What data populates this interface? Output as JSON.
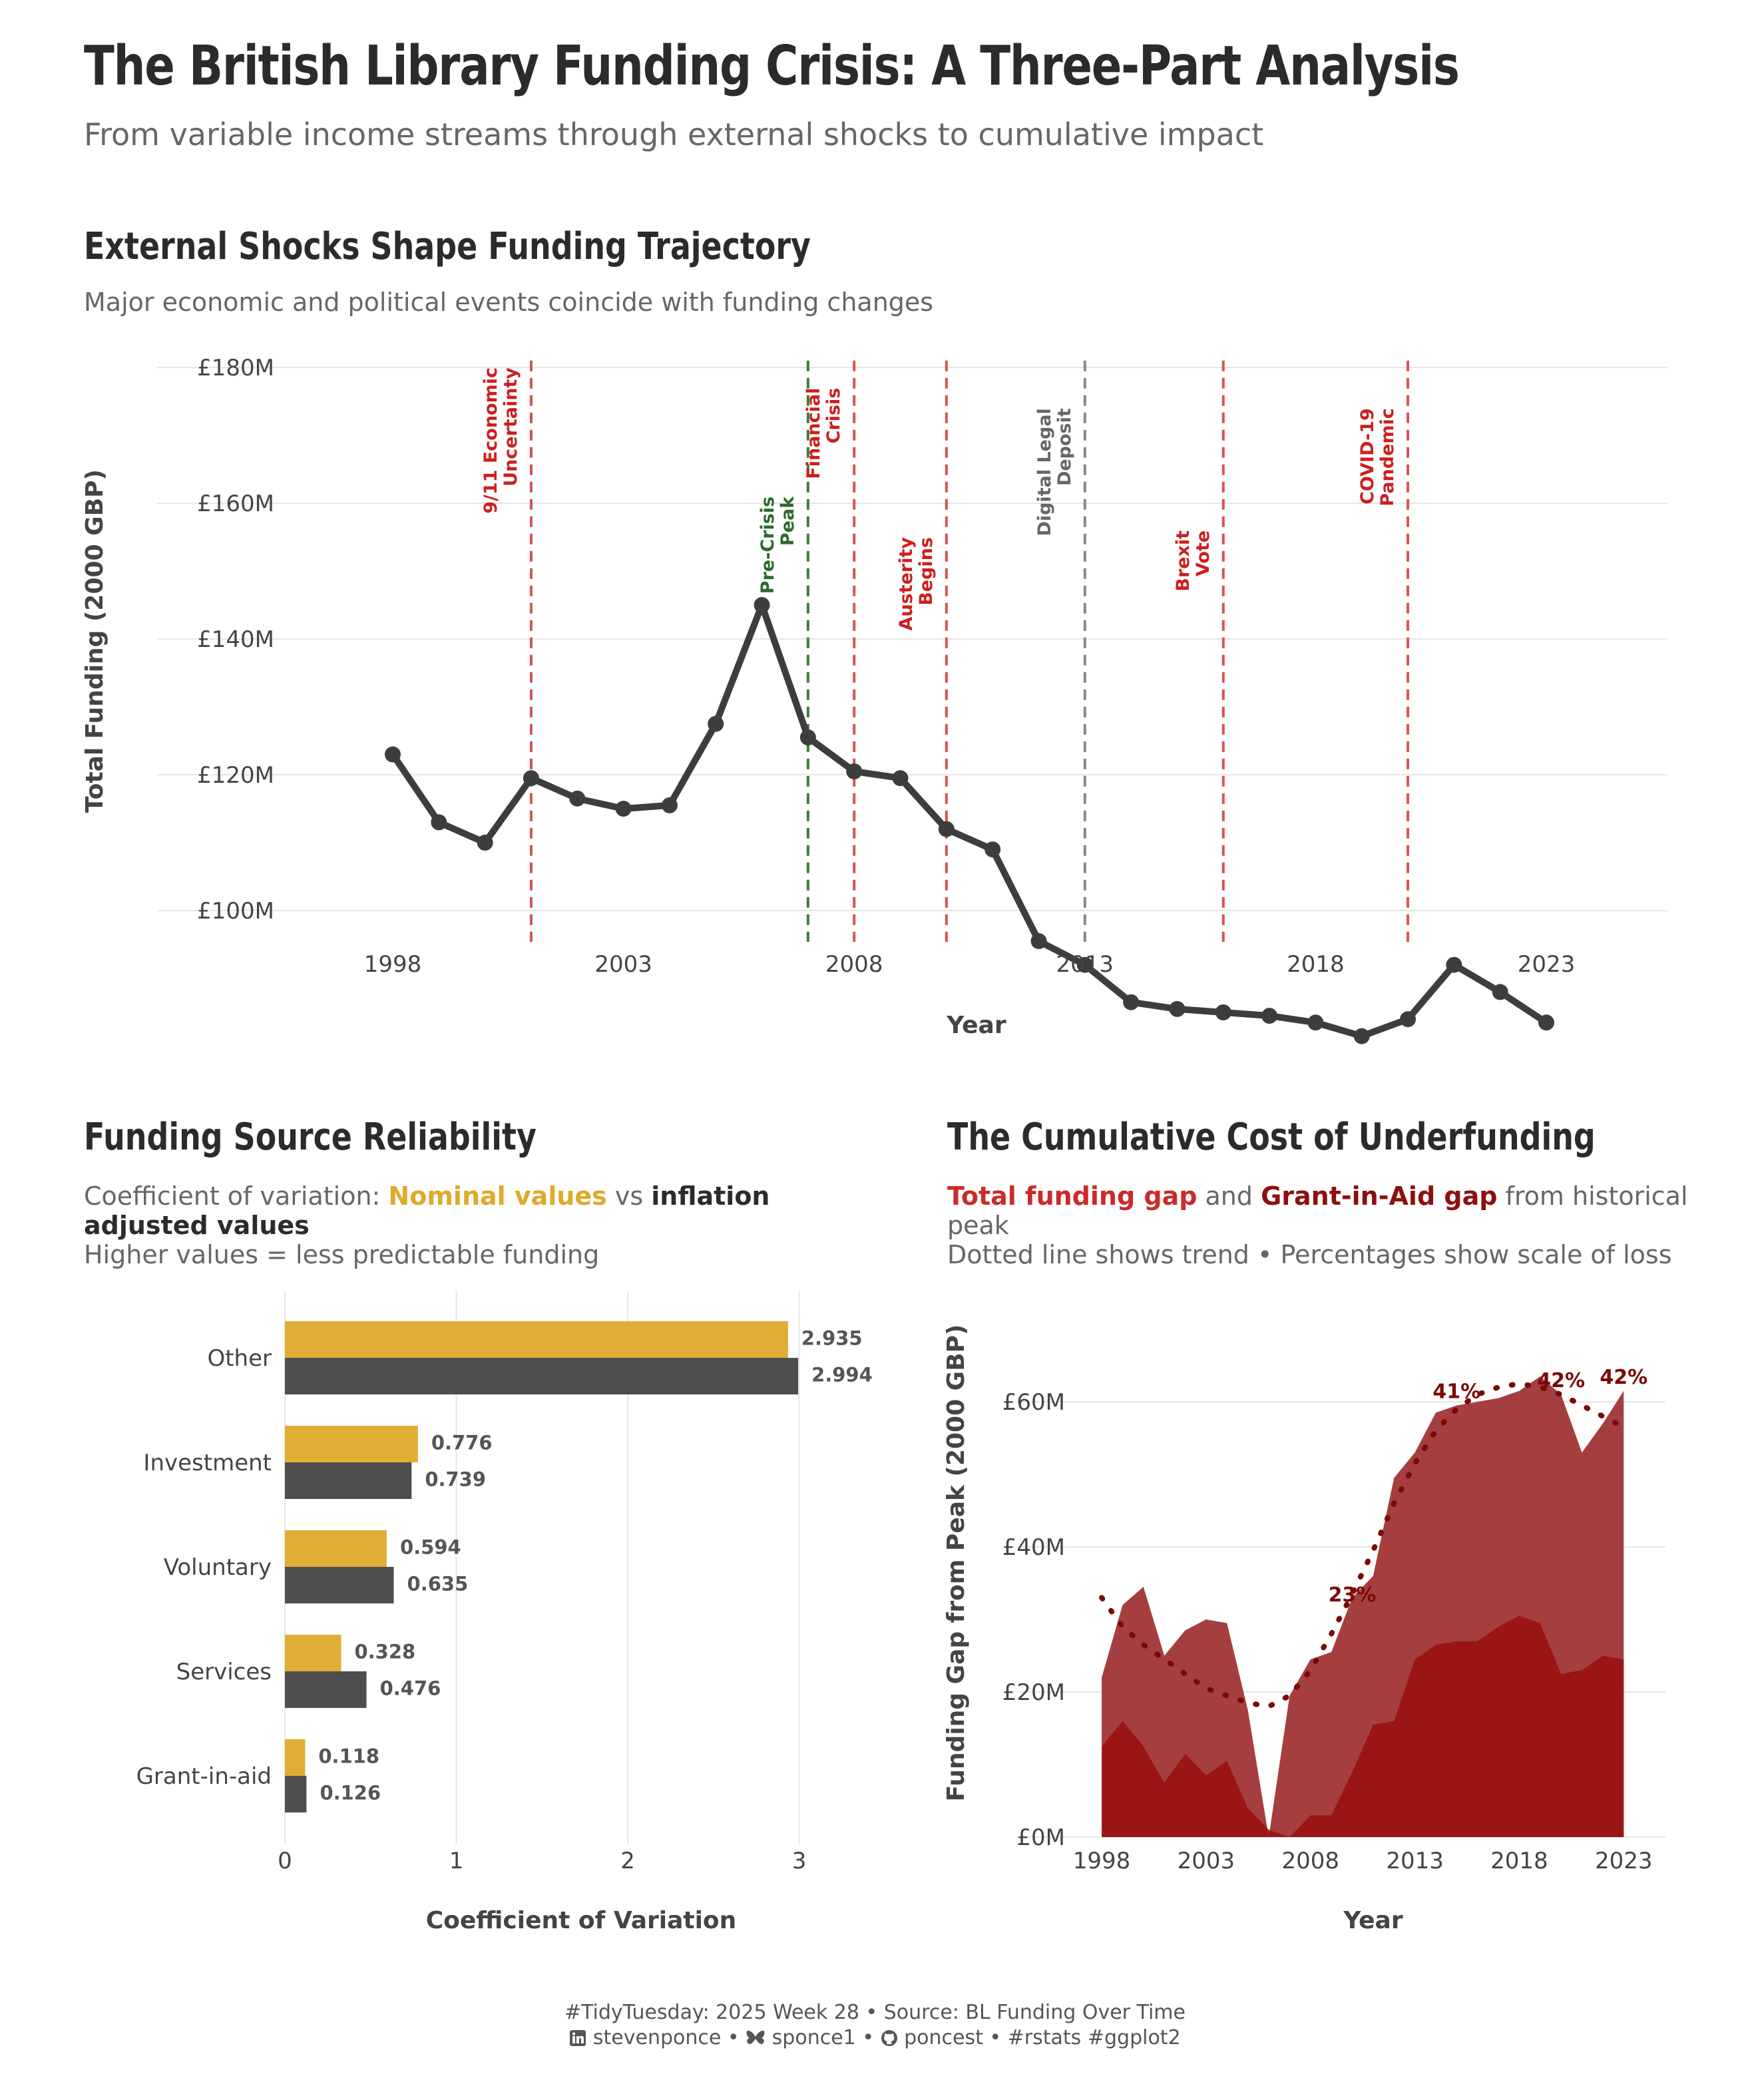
{
  "title": "The British Library Funding Crisis: A Three-Part Analysis",
  "subtitle": "From variable income streams through external shocks to cumulative impact",
  "footer": {
    "line1": "#TidyTuesday: 2025 Week 28 • Source: BL Funding Over Time",
    "linkedin_icon": "linkedin-icon",
    "linkedin": "stevenponce",
    "bluesky_icon": "butterfly-icon",
    "bluesky": "sponce1",
    "github_icon": "github-icon",
    "github": "poncest",
    "tags": "#rstats #ggplot2",
    "sep": "•"
  },
  "colors": {
    "line": "#3d3d3d",
    "event_red": "#d9534f",
    "event_red_text": "#cc1f1f",
    "event_green": "#3a7d3a",
    "event_green_text": "#2d6a2d",
    "event_gray": "#888888",
    "nominal": "#dfaa2a",
    "adjusted": "#454545",
    "total_gap": "#a33b3b",
    "gia_gap": "#9b1111",
    "trend": "#7a0a0a"
  },
  "panels": {
    "shocks": {
      "title": "External Shocks Shape Funding Trajectory",
      "subtitle": "Major economic and political events coincide with funding changes"
    },
    "reliability": {
      "title": "Funding Source Reliability",
      "subtitle_prefix": "Coefficient of variation: ",
      "subtitle_nominal": "Nominal values",
      "subtitle_vs": " vs ",
      "subtitle_adjusted": "inflation adjusted values",
      "subtitle_line2": "Higher values = less predictable funding"
    },
    "cumulative": {
      "title": "The Cumulative Cost of Underfunding",
      "subtitle_total": "Total funding gap",
      "subtitle_and": " and ",
      "subtitle_gia": "Grant-in-Aid gap",
      "subtitle_rest": " from historical peak",
      "subtitle_line2": "Dotted line shows trend • Percentages show scale of loss"
    }
  },
  "chart_data": [
    {
      "type": "line",
      "title": "External Shocks Shape Funding Trajectory",
      "xlabel": "Year",
      "ylabel": "Total Funding (2000 GBP)",
      "xlim": [
        1998,
        2023
      ],
      "ylim": [
        80,
        180
      ],
      "x_ticks": [
        1998,
        2003,
        2008,
        2013,
        2018,
        2023
      ],
      "y_ticks": [
        100,
        120,
        140,
        160,
        180
      ],
      "y_tick_labels": [
        "£100M",
        "£120M",
        "£140M",
        "£160M",
        "£180M"
      ],
      "grid": "horizontal",
      "x": [
        1998,
        1999,
        2000,
        2001,
        2002,
        2003,
        2004,
        2005,
        2006,
        2007,
        2008,
        2009,
        2010,
        2011,
        2012,
        2013,
        2014,
        2015,
        2016,
        2017,
        2018,
        2019,
        2020,
        2021,
        2022,
        2023
      ],
      "y": [
        123,
        113,
        110,
        119.5,
        116.5,
        115,
        115.5,
        127.5,
        145,
        125.5,
        120.5,
        119.5,
        112,
        109,
        95.5,
        92,
        86.5,
        85.5,
        85,
        84.5,
        83.5,
        81.5,
        84,
        92,
        88,
        83.5
      ],
      "events": [
        {
          "year": 2001,
          "label": "9/11 Economic\nUncertainty",
          "kind": "negative",
          "text_top": 180
        },
        {
          "year": 2007,
          "label": "Pre-Crisis\nPeak",
          "kind": "positive",
          "text_top": 161
        },
        {
          "year": 2008,
          "label": "Financial\nCrisis",
          "kind": "negative",
          "text_top": 177
        },
        {
          "year": 2010,
          "label": "Austerity\nBegins",
          "kind": "negative",
          "text_top": 155
        },
        {
          "year": 2013,
          "label": "Digital Legal\nDeposit",
          "kind": "neutral",
          "text_top": 174
        },
        {
          "year": 2016,
          "label": "Brexit\nVote",
          "kind": "negative",
          "text_top": 156
        },
        {
          "year": 2020,
          "label": "COVID-19\nPandemic",
          "kind": "negative",
          "text_top": 174
        }
      ]
    },
    {
      "type": "bar",
      "orientation": "horizontal",
      "xlabel": "Coefficient of Variation",
      "xlim": [
        0,
        3.25
      ],
      "x_ticks": [
        0,
        1,
        2,
        3
      ],
      "grid": "vertical",
      "categories": [
        "Other",
        "Investment",
        "Voluntary",
        "Services",
        "Grant-in-aid"
      ],
      "series": [
        {
          "name": "Nominal values",
          "values": [
            2.935,
            0.776,
            0.594,
            0.328,
            0.118
          ],
          "labels": [
            "2.935",
            "0.776",
            "0.594",
            "0.328",
            "0.118"
          ]
        },
        {
          "name": "inflation adjusted values",
          "values": [
            2.994,
            0.739,
            0.635,
            0.476,
            0.126
          ],
          "labels": [
            "2.994",
            "0.739",
            "0.635",
            "0.476",
            "0.126"
          ]
        }
      ]
    },
    {
      "type": "area",
      "xlabel": "Year",
      "ylabel": "Funding Gap from Peak (2000 GBP)",
      "xlim": [
        1996.5,
        2025
      ],
      "ylim": [
        0,
        70
      ],
      "x_ticks": [
        1998,
        2003,
        2008,
        2013,
        2018,
        2023
      ],
      "y_ticks": [
        0,
        20,
        40,
        60
      ],
      "y_tick_labels": [
        "£0M",
        "£20M",
        "£40M",
        "£60M"
      ],
      "grid": "horizontal",
      "x": [
        1998,
        1999,
        2000,
        2001,
        2002,
        2003,
        2004,
        2005,
        2006,
        2007,
        2008,
        2009,
        2010,
        2011,
        2012,
        2013,
        2014,
        2015,
        2016,
        2017,
        2018,
        2019,
        2020,
        2021,
        2022,
        2023
      ],
      "series": [
        {
          "name": "Total funding gap",
          "values": [
            22,
            32,
            34.5,
            25,
            28.5,
            30,
            29.5,
            17.5,
            0,
            19.5,
            24.5,
            25.5,
            33,
            36,
            49.5,
            53,
            58.5,
            59.5,
            60,
            60.5,
            61.5,
            63.5,
            61,
            53,
            57,
            61.5
          ]
        },
        {
          "name": "Grant-in-Aid gap",
          "values": [
            12.5,
            16,
            12.5,
            7.5,
            11.5,
            8.5,
            10.5,
            4,
            1,
            0,
            3,
            3,
            9,
            15.5,
            16,
            24.5,
            26.5,
            27,
            27,
            29,
            30.5,
            29.5,
            22.5,
            23,
            25,
            24.5
          ]
        },
        {
          "name": "trend",
          "x": [
            1998,
            1999,
            2000,
            2001,
            2002,
            2003,
            2004,
            2005,
            2006,
            2007,
            2008,
            2009,
            2010,
            2011,
            2012,
            2013,
            2014,
            2015,
            2016,
            2017,
            2018,
            2019,
            2020,
            2021,
            2022,
            2023
          ],
          "values": [
            33,
            29,
            26.5,
            24.5,
            22.5,
            20.5,
            19.5,
            18.5,
            18,
            19.5,
            23,
            28,
            33.5,
            39.5,
            46,
            51.5,
            56,
            59,
            61,
            62,
            62.5,
            62,
            61,
            59.5,
            58,
            56.5
          ]
        }
      ],
      "annotations": [
        {
          "x": 2010,
          "y": 32.5,
          "label": "23%"
        },
        {
          "x": 2015,
          "y": 60.5,
          "label": "41%"
        },
        {
          "x": 2020,
          "y": 62,
          "label": "42%"
        },
        {
          "x": 2023,
          "y": 62.5,
          "label": "42%"
        }
      ]
    }
  ]
}
